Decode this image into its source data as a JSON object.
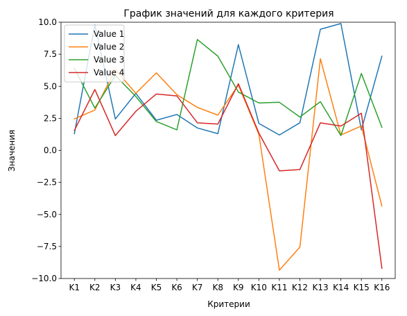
{
  "chart_data": {
    "type": "line",
    "title": "График значений для каждого критерия",
    "xlabel": "Критерии",
    "ylabel": "Значения",
    "ylim": [
      -10,
      10
    ],
    "yticks": [
      -10.0,
      -7.5,
      -5.0,
      -2.5,
      0.0,
      2.5,
      5.0,
      7.5,
      10.0
    ],
    "grid": false,
    "legend_position": "top-left",
    "categories": [
      "K1",
      "K2",
      "K3",
      "K4",
      "K5",
      "K6",
      "K7",
      "K8",
      "K9",
      "K10",
      "K11",
      "K12",
      "K13",
      "K14",
      "K15",
      "K16"
    ],
    "series": [
      {
        "name": "Value 1",
        "color": "#1f77b4",
        "values": [
          1.3,
          9.8,
          2.45,
          4.45,
          2.35,
          2.8,
          1.75,
          1.3,
          8.25,
          2.1,
          1.2,
          2.15,
          9.45,
          9.9,
          1.6,
          7.35
        ]
      },
      {
        "name": "Value 2",
        "color": "#ff7f0e",
        "values": [
          2.45,
          3.15,
          6.3,
          4.45,
          6.05,
          4.35,
          3.35,
          2.75,
          5.1,
          1.25,
          -9.35,
          -7.55,
          7.15,
          1.2,
          1.9,
          -4.35
        ]
      },
      {
        "name": "Value 3",
        "color": "#2ca02c",
        "values": [
          6.4,
          3.3,
          5.85,
          4.2,
          2.25,
          1.6,
          8.65,
          7.35,
          4.55,
          3.7,
          3.75,
          2.6,
          3.8,
          1.15,
          6.0,
          1.8
        ]
      },
      {
        "name": "Value 4",
        "color": "#d62728",
        "values": [
          1.55,
          4.75,
          1.15,
          3.05,
          4.4,
          4.25,
          2.15,
          2.05,
          5.2,
          1.35,
          -1.6,
          -1.5,
          2.15,
          1.9,
          2.9,
          -9.2
        ]
      }
    ]
  }
}
